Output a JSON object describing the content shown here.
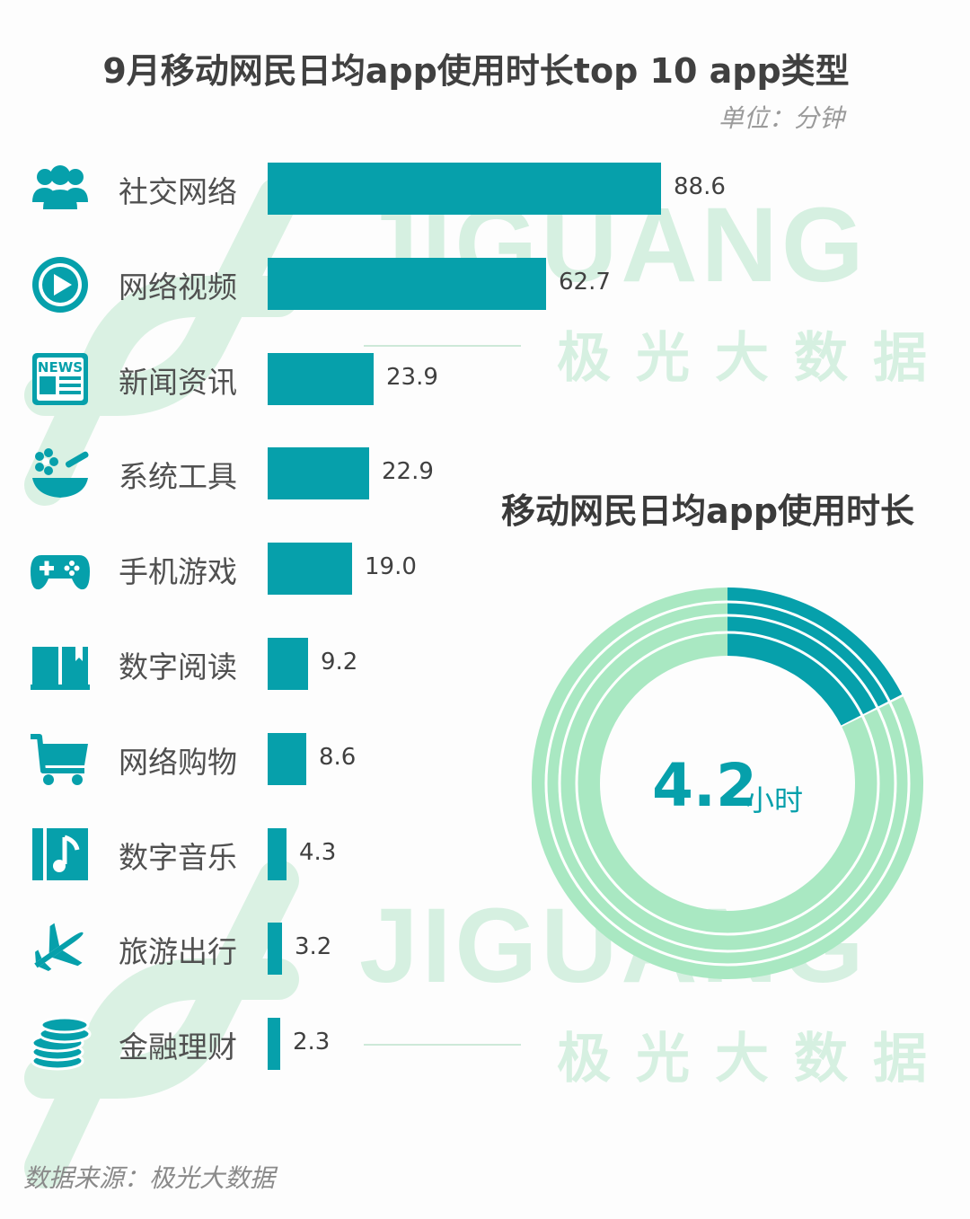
{
  "title": "9月移动网民日均app使用时长top 10 app类型",
  "unit": "单位：分钟",
  "watermark": {
    "brand": "JIGUANG",
    "cn": "极光大数据"
  },
  "colors": {
    "bar": "#06a0ab",
    "ring": "#a9e8c2",
    "accent": "#06a0ab",
    "watermark": "#c9ecd8"
  },
  "chart_data": [
    {
      "type": "bar",
      "orientation": "horizontal",
      "title": "9月移动网民日均app使用时长top 10 app类型",
      "unit": "单位：分钟",
      "categories": [
        "社交网络",
        "网络视频",
        "新闻资讯",
        "系统工具",
        "手机游戏",
        "数字阅读",
        "网络购物",
        "数字音乐",
        "旅游出行",
        "金融理财"
      ],
      "values": [
        88.6,
        62.7,
        23.9,
        22.9,
        19.0,
        9.2,
        8.6,
        4.3,
        3.2,
        2.3
      ],
      "value_labels": [
        "88.6",
        "62.7",
        "23.9",
        "22.9",
        "19.0",
        "9.2",
        "8.6",
        "4.3",
        "3.2",
        "2.3"
      ],
      "icons": [
        "users-icon",
        "play-icon",
        "news-icon",
        "tools-icon",
        "gamepad-icon",
        "book-icon",
        "cart-icon",
        "music-icon",
        "plane-icon",
        "coins-icon"
      ],
      "xlim": [
        0,
        88.6
      ]
    },
    {
      "type": "pie",
      "variant": "donut",
      "title": "移动网民日均app使用时长",
      "center_value": "4.2",
      "center_unit": "小时",
      "highlight_fraction": 0.175
    }
  ],
  "source": "数据来源：极光大数据"
}
